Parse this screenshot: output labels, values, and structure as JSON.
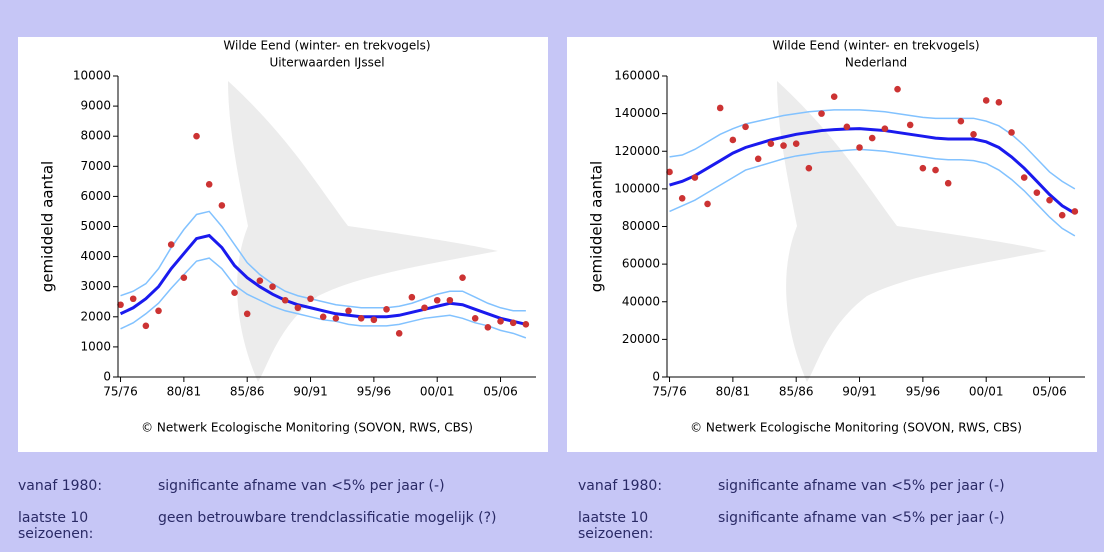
{
  "chart_data": [
    {
      "type": "line",
      "title": "Wilde Eend (winter- en trekvogels)",
      "subtitle": "Uiterwaarden IJssel",
      "y_label": "gemiddeld aantal",
      "note": "© Netwerk Ecologische Monitoring (SOVON, RWS, CBS)",
      "x": [
        1975,
        1976,
        1977,
        1978,
        1979,
        1980,
        1981,
        1982,
        1983,
        1984,
        1985,
        1986,
        1987,
        1988,
        1989,
        1990,
        1991,
        1992,
        1993,
        1994,
        1995,
        1996,
        1997,
        1998,
        1999,
        2000,
        2001,
        2002,
        2003,
        2004,
        2005,
        2006,
        2007
      ],
      "xlim": [
        1974.8,
        2007.8
      ],
      "xticks": [
        {
          "value": 1975,
          "label": "75/76"
        },
        {
          "value": 1980,
          "label": "80/81"
        },
        {
          "value": 1985,
          "label": "85/86"
        },
        {
          "value": 1990,
          "label": "90/91"
        },
        {
          "value": 1995,
          "label": "95/96"
        },
        {
          "value": 2000,
          "label": "00/01"
        },
        {
          "value": 2005,
          "label": "05/06"
        }
      ],
      "ylim": [
        0,
        10000
      ],
      "yticks": [
        0,
        1000,
        2000,
        3000,
        4000,
        5000,
        6000,
        7000,
        8000,
        9000,
        10000
      ],
      "series": [
        {
          "style": "band",
          "color": "#82c2ff",
          "values": [
            2700,
            2850,
            3100,
            3600,
            4300,
            4900,
            5400,
            5500,
            5000,
            4400,
            3800,
            3400,
            3100,
            2850,
            2700,
            2600,
            2500,
            2400,
            2350,
            2300,
            2300,
            2300,
            2350,
            2450,
            2600,
            2750,
            2850,
            2850,
            2650,
            2450,
            2300,
            2200,
            2200
          ]
        },
        {
          "style": "band",
          "color": "#82c2ff",
          "values": [
            1600,
            1800,
            2100,
            2450,
            2950,
            3400,
            3850,
            3950,
            3600,
            3050,
            2750,
            2550,
            2350,
            2200,
            2100,
            2000,
            1900,
            1850,
            1750,
            1700,
            1700,
            1700,
            1750,
            1850,
            1950,
            2000,
            2050,
            1950,
            1800,
            1700,
            1550,
            1450,
            1300
          ]
        },
        {
          "style": "trend",
          "color": "#1a1aee",
          "values": [
            2100,
            2300,
            2600,
            3000,
            3600,
            4100,
            4600,
            4700,
            4300,
            3700,
            3300,
            3000,
            2750,
            2550,
            2400,
            2300,
            2200,
            2100,
            2050,
            2000,
            2000,
            2000,
            2050,
            2150,
            2250,
            2350,
            2450,
            2400,
            2250,
            2100,
            1950,
            1850,
            1750
          ]
        },
        {
          "style": "points",
          "color": "#cc3333",
          "values": [
            2400,
            2600,
            1700,
            2200,
            4400,
            3300,
            8000,
            6400,
            5700,
            2800,
            2100,
            3200,
            3000,
            2550,
            2300,
            2600,
            2000,
            1950,
            2200,
            1950,
            1900,
            2250,
            1450,
            2650,
            2300,
            2550,
            2550,
            3300,
            1950,
            1650,
            1850,
            1800,
            1750
          ]
        }
      ]
    },
    {
      "type": "line",
      "title": "Wilde Eend (winter- en trekvogels)",
      "subtitle": "Nederland",
      "y_label": "gemiddeld aantal",
      "note": "© Netwerk Ecologische Monitoring (SOVON, RWS, CBS)",
      "x": [
        1975,
        1976,
        1977,
        1978,
        1979,
        1980,
        1981,
        1982,
        1983,
        1984,
        1985,
        1986,
        1987,
        1988,
        1989,
        1990,
        1991,
        1992,
        1993,
        1994,
        1995,
        1996,
        1997,
        1998,
        1999,
        2000,
        2001,
        2002,
        2003,
        2004,
        2005,
        2006,
        2007
      ],
      "xlim": [
        1974.8,
        2007.8
      ],
      "xticks": [
        {
          "value": 1975,
          "label": "75/76"
        },
        {
          "value": 1980,
          "label": "80/81"
        },
        {
          "value": 1985,
          "label": "85/86"
        },
        {
          "value": 1990,
          "label": "90/91"
        },
        {
          "value": 1995,
          "label": "95/96"
        },
        {
          "value": 2000,
          "label": "00/01"
        },
        {
          "value": 2005,
          "label": "05/06"
        }
      ],
      "ylim": [
        0,
        160000
      ],
      "yticks": [
        0,
        20000,
        40000,
        60000,
        80000,
        100000,
        120000,
        140000,
        160000
      ],
      "series": [
        {
          "style": "band",
          "color": "#82c2ff",
          "values": [
            117000,
            118000,
            121000,
            125000,
            129000,
            132000,
            134500,
            136000,
            137500,
            139000,
            140000,
            141000,
            141500,
            142000,
            142000,
            142000,
            141500,
            141000,
            140000,
            139000,
            138000,
            137500,
            137500,
            137500,
            137500,
            136000,
            133500,
            129000,
            123000,
            116000,
            109000,
            104000,
            100000
          ]
        },
        {
          "style": "band",
          "color": "#82c2ff",
          "values": [
            88000,
            91000,
            94000,
            98000,
            102000,
            106000,
            110000,
            112000,
            114000,
            116000,
            117500,
            118500,
            119500,
            120000,
            120500,
            121000,
            120500,
            120000,
            119000,
            118000,
            117000,
            116000,
            115500,
            115500,
            115000,
            113500,
            110000,
            105000,
            99000,
            92000,
            85000,
            79000,
            75000
          ]
        },
        {
          "style": "trend",
          "color": "#1a1aee",
          "values": [
            102000,
            104000,
            107000,
            111000,
            115000,
            119000,
            122000,
            124000,
            126000,
            127500,
            129000,
            130000,
            131000,
            131500,
            131800,
            132000,
            131500,
            131000,
            130000,
            129000,
            128000,
            127000,
            126500,
            126500,
            126500,
            125000,
            122000,
            117000,
            111000,
            104000,
            97000,
            91000,
            87000
          ]
        },
        {
          "style": "points",
          "color": "#cc3333",
          "values": [
            109000,
            95000,
            106000,
            92000,
            143000,
            126000,
            133000,
            116000,
            124000,
            123000,
            124000,
            111000,
            140000,
            149000,
            133000,
            122000,
            127000,
            132000,
            153000,
            134000,
            111000,
            110000,
            103000,
            136000,
            129000,
            147000,
            146000,
            130000,
            106000,
            98000,
            94000,
            86000,
            88000
          ]
        }
      ]
    }
  ],
  "summaries": [
    [
      {
        "label": "vanaf 1980:",
        "text": "significante afname van <5% per jaar (-)"
      },
      {
        "label": "laatste 10 seizoenen:",
        "text": "geen betrouwbare trendclassificatie mogelijk (?)"
      }
    ],
    [
      {
        "label": "vanaf 1980:",
        "text": "significante afname van <5% per jaar (-)"
      },
      {
        "label": "laatste 10 seizoenen:",
        "text": "significante afname van <5% per jaar (-)"
      }
    ]
  ]
}
